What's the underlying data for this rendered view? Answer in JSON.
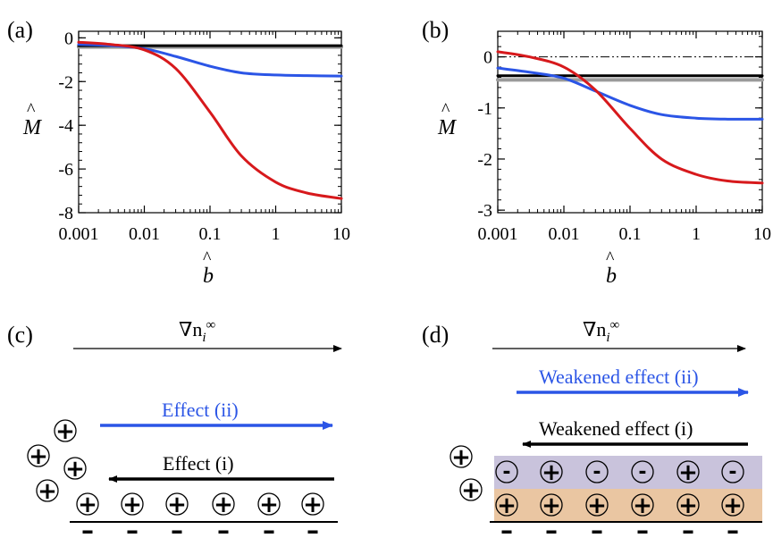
{
  "panels": {
    "a": {
      "label": "(a)"
    },
    "b": {
      "label": "(b)"
    },
    "c": {
      "label": "(c)",
      "gradient": "∇n",
      "gradient_sub": "i",
      "gradient_sup": "∞",
      "effect_ii": "Effect (ii)",
      "effect_i": "Effect (i)"
    },
    "d": {
      "label": "(d)",
      "gradient": "∇n",
      "gradient_sub": "i",
      "gradient_sup": "∞",
      "effect_ii": "Weakened effect (ii)",
      "effect_i": "Weakened effect (i)"
    }
  },
  "symbols": {
    "plus": "+",
    "minus": "-",
    "surface_charge": "–"
  },
  "colors": {
    "red": "#d7191c",
    "blue": "#2b55e6",
    "black": "#000000",
    "gray": "#9a9a9a",
    "purple_layer": "#c9c3dc",
    "orange_layer": "#eac6a2"
  },
  "chart_data": [
    {
      "type": "line",
      "panel": "(a)",
      "xscale": "log",
      "xlim": [
        0.001,
        10
      ],
      "ylim": [
        -8,
        0.3
      ],
      "xticks": [
        "0.001",
        "0.01",
        "0.1",
        "1",
        "10"
      ],
      "yticks": [
        "0",
        "-2",
        "-4",
        "-6",
        "-8"
      ],
      "ytick_values": [
        0,
        -2,
        -4,
        -6,
        -8
      ],
      "xlabel": "b",
      "ylabel": "M",
      "series": [
        {
          "color": "red",
          "x": [
            0.001,
            0.003,
            0.01,
            0.03,
            0.1,
            0.3,
            1,
            3,
            10
          ],
          "y": [
            -0.2,
            -0.3,
            -0.55,
            -1.4,
            -3.4,
            -5.4,
            -6.6,
            -7.1,
            -7.35
          ]
        },
        {
          "color": "blue",
          "x": [
            0.001,
            0.003,
            0.01,
            0.03,
            0.1,
            0.3,
            1,
            3,
            10
          ],
          "y": [
            -0.3,
            -0.35,
            -0.5,
            -0.85,
            -1.3,
            -1.6,
            -1.7,
            -1.73,
            -1.75
          ]
        },
        {
          "color": "gray",
          "x": [
            0.001,
            10
          ],
          "y": [
            -0.42,
            -0.42
          ]
        },
        {
          "color": "black",
          "x": [
            0.001,
            10
          ],
          "y": [
            -0.36,
            -0.36
          ]
        }
      ]
    },
    {
      "type": "line",
      "panel": "(b)",
      "xscale": "log",
      "xlim": [
        0.001,
        10
      ],
      "ylim": [
        -3.05,
        0.5
      ],
      "xticks": [
        "0.001",
        "0.01",
        "0.1",
        "1",
        "10"
      ],
      "yticks": [
        "0",
        "-1",
        "-2",
        "-3"
      ],
      "ytick_values": [
        0,
        -1,
        -2,
        -3
      ],
      "xlabel": "b",
      "ylabel": "M",
      "reference_line": {
        "y": 0,
        "style": "dash-dot"
      },
      "series": [
        {
          "color": "red",
          "x": [
            0.001,
            0.003,
            0.01,
            0.03,
            0.1,
            0.3,
            1,
            3,
            10
          ],
          "y": [
            0.1,
            0.0,
            -0.2,
            -0.65,
            -1.4,
            -2.0,
            -2.3,
            -2.43,
            -2.47
          ]
        },
        {
          "color": "blue",
          "x": [
            0.001,
            0.003,
            0.01,
            0.03,
            0.1,
            0.3,
            1,
            3,
            10
          ],
          "y": [
            -0.22,
            -0.3,
            -0.42,
            -0.67,
            -0.95,
            -1.13,
            -1.2,
            -1.22,
            -1.22
          ]
        },
        {
          "color": "gray",
          "x": [
            0.001,
            10
          ],
          "y": [
            -0.45,
            -0.45
          ]
        },
        {
          "color": "black",
          "x": [
            0.001,
            10
          ],
          "y": [
            -0.37,
            -0.37
          ]
        }
      ]
    }
  ]
}
